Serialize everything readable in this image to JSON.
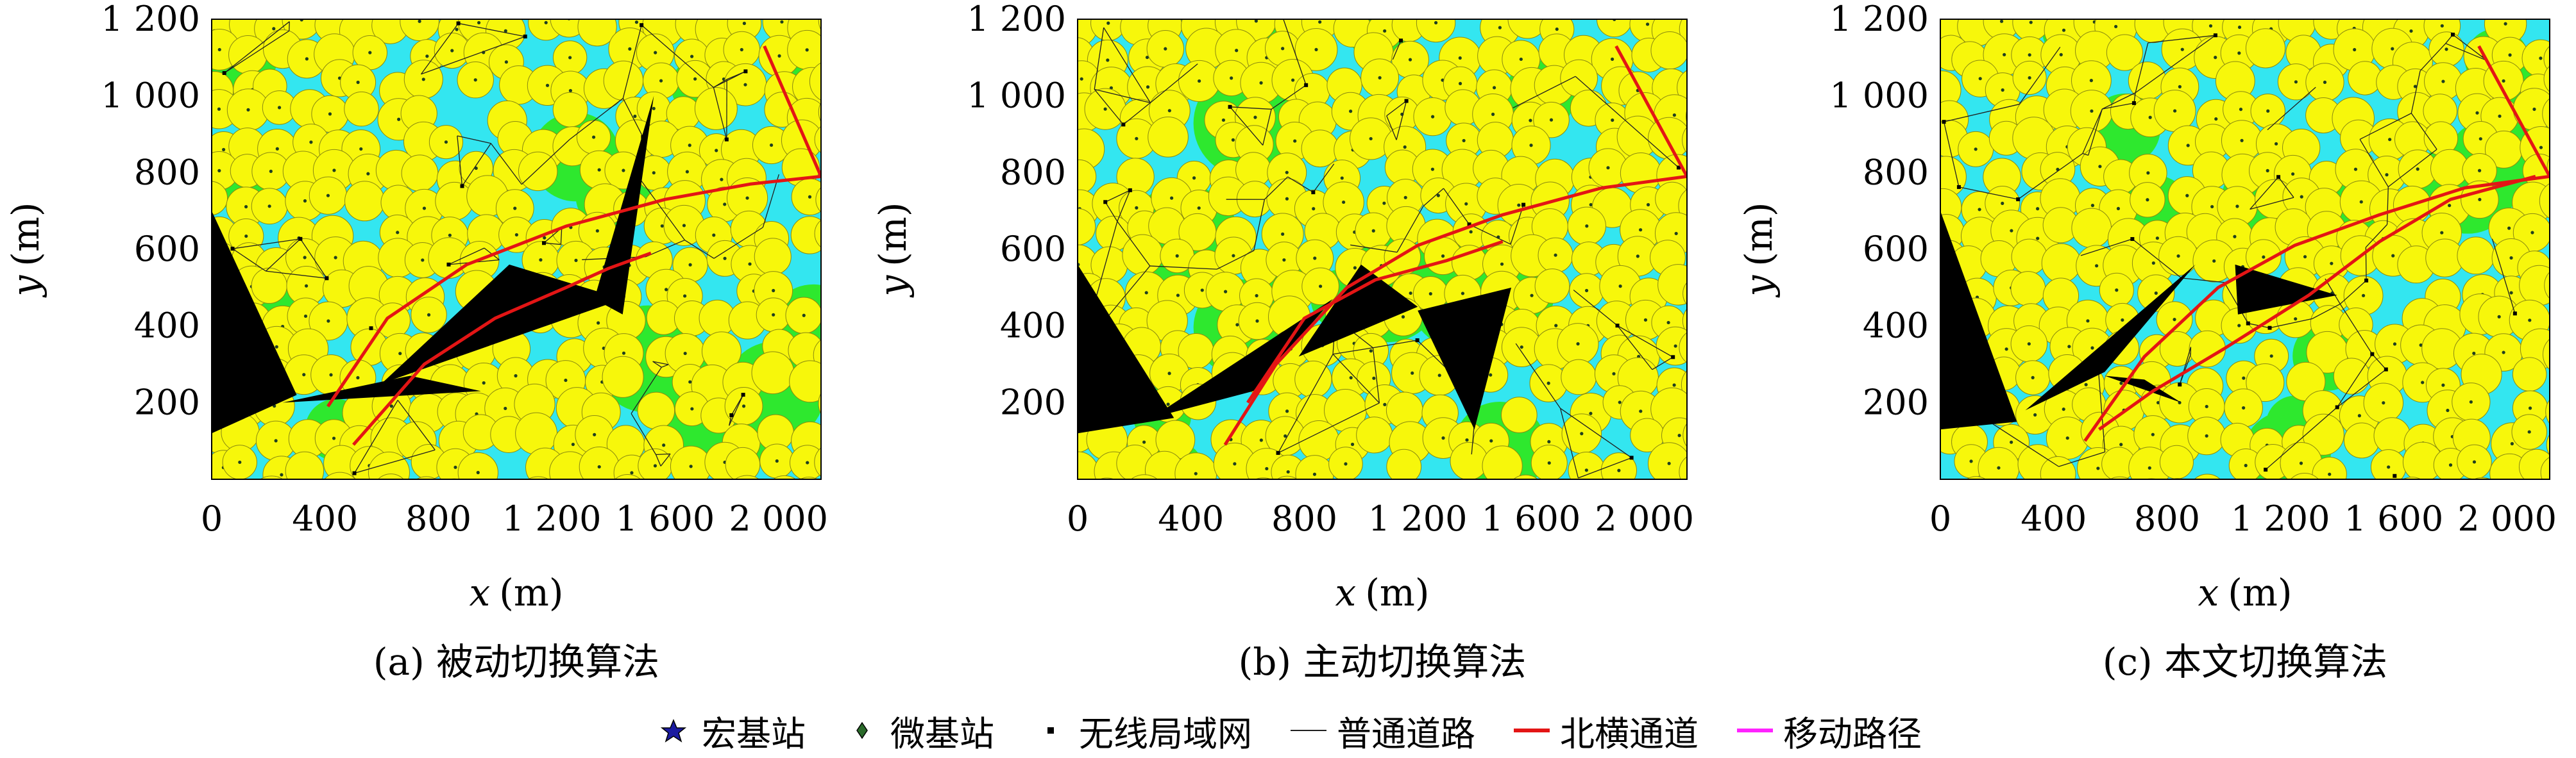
{
  "colors": {
    "background_water": "#33e6f0",
    "coverage_macro": "#2ee82e",
    "coverage_micro": "#f7f70b",
    "micro_outline": "#8a8a10",
    "road": "#202020",
    "north_corridor": "#e31515",
    "mobility_path": "#ff22ff",
    "triangle": "#000000",
    "macro_star": "#1a1aa0"
  },
  "chart_data": [
    {
      "type": "scatter",
      "caption": "(a) 被动切换算法",
      "xlabel_var": "x",
      "xlabel_unit": "(m)",
      "ylabel_var": "y",
      "ylabel_unit": "(m)",
      "xlim": [
        0,
        2150
      ],
      "ylim": [
        0,
        1200
      ],
      "xticks": [
        {
          "v": 0,
          "label": "0"
        },
        {
          "v": 400,
          "label": "400"
        },
        {
          "v": 800,
          "label": "800"
        },
        {
          "v": 1200,
          "label": "1 200"
        },
        {
          "v": 1600,
          "label": "1 600"
        },
        {
          "v": 2000,
          "label": "2 000"
        }
      ],
      "yticks": [
        {
          "v": 200,
          "label": "200"
        },
        {
          "v": 400,
          "label": "400"
        },
        {
          "v": 600,
          "label": "600"
        },
        {
          "v": 800,
          "label": "800"
        },
        {
          "v": 1000,
          "label": "1 000"
        },
        {
          "v": 1200,
          "label": "1 200"
        }
      ],
      "north_corridor": [
        [
          [
            410,
            190
          ],
          [
            620,
            420
          ],
          [
            900,
            560
          ],
          [
            1250,
            660
          ],
          [
            1600,
            730
          ],
          [
            1900,
            770
          ],
          [
            2150,
            790
          ],
          [
            1950,
            1130
          ]
        ],
        [
          [
            500,
            90
          ],
          [
            750,
            300
          ],
          [
            1000,
            420
          ],
          [
            1250,
            500
          ],
          [
            1400,
            550
          ],
          [
            1550,
            590
          ]
        ]
      ],
      "handover_triangles": [
        [
          [
            0,
            700
          ],
          [
            0,
            120
          ],
          [
            300,
            220
          ]
        ],
        [
          [
            250,
            200
          ],
          [
            950,
            230
          ],
          [
            700,
            270
          ]
        ],
        [
          [
            600,
            250
          ],
          [
            1050,
            560
          ],
          [
            1450,
            470
          ]
        ],
        [
          [
            1350,
            470
          ],
          [
            1560,
            1000
          ],
          [
            1450,
            430
          ]
        ]
      ]
    },
    {
      "type": "scatter",
      "caption": "(b) 主动切换算法",
      "xlabel_var": "x",
      "xlabel_unit": "(m)",
      "ylabel_var": "y",
      "ylabel_unit": "(m)",
      "xlim": [
        0,
        2150
      ],
      "ylim": [
        0,
        1200
      ],
      "xticks": [
        {
          "v": 0,
          "label": "0"
        },
        {
          "v": 400,
          "label": "400"
        },
        {
          "v": 800,
          "label": "800"
        },
        {
          "v": 1200,
          "label": "1 200"
        },
        {
          "v": 1600,
          "label": "1 600"
        },
        {
          "v": 2000,
          "label": "2 000"
        }
      ],
      "yticks": [
        {
          "v": 200,
          "label": "200"
        },
        {
          "v": 400,
          "label": "400"
        },
        {
          "v": 600,
          "label": "600"
        },
        {
          "v": 800,
          "label": "800"
        },
        {
          "v": 1000,
          "label": "1 000"
        },
        {
          "v": 1200,
          "label": "1 200"
        }
      ],
      "north_corridor": [
        [
          [
            520,
            90
          ],
          [
            700,
            300
          ],
          [
            950,
            500
          ],
          [
            1200,
            610
          ],
          [
            1500,
            690
          ],
          [
            1850,
            760
          ],
          [
            2150,
            790
          ],
          [
            1900,
            1130
          ]
        ],
        [
          [
            600,
            200
          ],
          [
            800,
            420
          ],
          [
            1050,
            520
          ],
          [
            1300,
            570
          ],
          [
            1500,
            620
          ]
        ]
      ],
      "handover_triangles": [
        [
          [
            0,
            560
          ],
          [
            0,
            120
          ],
          [
            340,
            160
          ]
        ],
        [
          [
            260,
            160
          ],
          [
            900,
            470
          ],
          [
            620,
            230
          ]
        ],
        [
          [
            780,
            320
          ],
          [
            1000,
            560
          ],
          [
            1200,
            450
          ]
        ],
        [
          [
            1200,
            440
          ],
          [
            1530,
            500
          ],
          [
            1400,
            130
          ]
        ]
      ]
    },
    {
      "type": "scatter",
      "caption": "(c) 本文切换算法",
      "xlabel_var": "x",
      "xlabel_unit": "(m)",
      "ylabel_var": "y",
      "ylabel_unit": "(m)",
      "xlim": [
        0,
        2150
      ],
      "ylim": [
        0,
        1200
      ],
      "xticks": [
        {
          "v": 0,
          "label": "0"
        },
        {
          "v": 400,
          "label": "400"
        },
        {
          "v": 800,
          "label": "800"
        },
        {
          "v": 1200,
          "label": "1 200"
        },
        {
          "v": 1600,
          "label": "1 600"
        },
        {
          "v": 2000,
          "label": "2 000"
        }
      ],
      "yticks": [
        {
          "v": 200,
          "label": "200"
        },
        {
          "v": 400,
          "label": "400"
        },
        {
          "v": 600,
          "label": "600"
        },
        {
          "v": 800,
          "label": "800"
        },
        {
          "v": 1000,
          "label": "1 000"
        },
        {
          "v": 1200,
          "label": "1 200"
        }
      ],
      "north_corridor": [
        [
          [
            510,
            100
          ],
          [
            720,
            320
          ],
          [
            980,
            500
          ],
          [
            1250,
            610
          ],
          [
            1550,
            690
          ],
          [
            1850,
            760
          ],
          [
            2150,
            790
          ],
          [
            1900,
            1130
          ]
        ],
        [
          [
            560,
            130
          ],
          [
            750,
            230
          ],
          [
            1000,
            340
          ],
          [
            1300,
            480
          ],
          [
            1550,
            620
          ],
          [
            1800,
            730
          ],
          [
            2100,
            790
          ]
        ]
      ],
      "handover_triangles": [
        [
          [
            0,
            700
          ],
          [
            0,
            130
          ],
          [
            270,
            150
          ]
        ],
        [
          [
            300,
            180
          ],
          [
            900,
            560
          ],
          [
            580,
            280
          ]
        ],
        [
          [
            580,
            270
          ],
          [
            850,
            200
          ],
          [
            720,
            260
          ]
        ],
        [
          [
            1050,
            430
          ],
          [
            1040,
            560
          ],
          [
            1400,
            480
          ]
        ]
      ]
    }
  ],
  "legend": [
    {
      "symbol": "star",
      "label": "宏基站"
    },
    {
      "symbol": "diamond",
      "label": "微基站"
    },
    {
      "symbol": "square",
      "label": "无线局域网"
    },
    {
      "symbol": "thin-line",
      "label": "普通道路"
    },
    {
      "symbol": "red-line",
      "label": "北横通道"
    },
    {
      "symbol": "magenta-line",
      "label": "移动路径"
    }
  ]
}
